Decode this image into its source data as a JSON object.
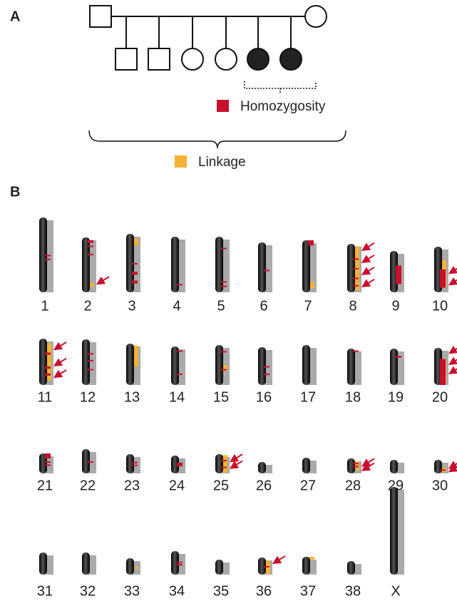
{
  "panel_a": {
    "label": "A",
    "legend": {
      "homozygosity": "Homozygosity",
      "linkage": "Linkage"
    }
  },
  "panel_b": {
    "label": "B",
    "chromosomes": [
      "1",
      "2",
      "3",
      "4",
      "5",
      "6",
      "7",
      "8",
      "9",
      "10",
      "11",
      "12",
      "13",
      "14",
      "15",
      "16",
      "17",
      "18",
      "19",
      "20",
      "21",
      "22",
      "23",
      "24",
      "25",
      "26",
      "27",
      "28",
      "29",
      "30",
      "31",
      "32",
      "33",
      "34",
      "35",
      "36",
      "37",
      "38",
      "X"
    ]
  }
}
